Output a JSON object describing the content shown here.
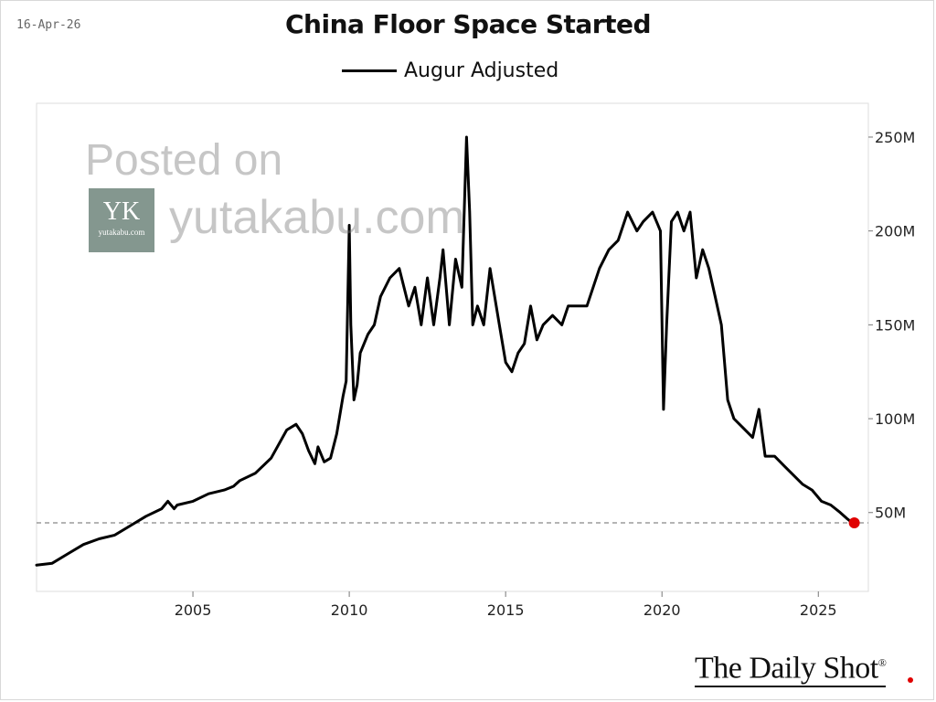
{
  "header": {
    "date": "16-Apr-26",
    "title": "China Floor Space Started",
    "legend_label": "Augur Adjusted"
  },
  "watermark": {
    "line1": "Posted on",
    "site": "yutakabu.com",
    "logo_mark": "YK",
    "logo_sub": "yutakabu.com"
  },
  "brand": {
    "name": "The Daily Shot",
    "mark": "®"
  },
  "colors": {
    "series": "#000000",
    "reference_line": "#888888",
    "end_marker": "#e00000",
    "grid_box": "#dddddd"
  },
  "chart_data": {
    "type": "line",
    "title": "China Floor Space Started",
    "xlabel": "",
    "ylabel": "",
    "x_ticks": [
      2005,
      2010,
      2015,
      2020,
      2025
    ],
    "y_ticks": [
      {
        "value": 50,
        "label": "50M"
      },
      {
        "value": 100,
        "label": "100M"
      },
      {
        "value": 150,
        "label": "150M"
      },
      {
        "value": 200,
        "label": "200M"
      },
      {
        "value": 250,
        "label": "250M"
      }
    ],
    "xlim": [
      2000.0,
      2026.6
    ],
    "ylim": [
      8,
      268
    ],
    "grid": false,
    "y_axis_side": "right",
    "legend_position": "top-center",
    "reference_line": 44.5,
    "series": [
      {
        "name": "Augur Adjusted",
        "x": [
          2000.0,
          2000.5,
          2001.0,
          2001.5,
          2002.0,
          2002.5,
          2003.0,
          2003.5,
          2004.0,
          2004.2,
          2004.4,
          2004.5,
          2005.0,
          2005.5,
          2006.0,
          2006.3,
          2006.5,
          2007.0,
          2007.5,
          2008.0,
          2008.3,
          2008.5,
          2008.7,
          2008.9,
          2009.0,
          2009.2,
          2009.4,
          2009.6,
          2009.8,
          2009.9,
          2010.0,
          2010.05,
          2010.15,
          2010.25,
          2010.35,
          2010.6,
          2010.8,
          2011.0,
          2011.3,
          2011.6,
          2011.9,
          2012.1,
          2012.3,
          2012.5,
          2012.7,
          2012.9,
          2013.0,
          2013.2,
          2013.4,
          2013.6,
          2013.75,
          2013.85,
          2013.95,
          2014.1,
          2014.3,
          2014.5,
          2014.8,
          2015.0,
          2015.2,
          2015.4,
          2015.6,
          2015.8,
          2016.0,
          2016.2,
          2016.5,
          2016.8,
          2017.0,
          2017.3,
          2017.6,
          2018.0,
          2018.3,
          2018.6,
          2018.9,
          2019.2,
          2019.4,
          2019.7,
          2019.85,
          2019.95,
          2020.05,
          2020.15,
          2020.3,
          2020.5,
          2020.7,
          2020.9,
          2021.1,
          2021.3,
          2021.5,
          2021.7,
          2021.9,
          2022.1,
          2022.3,
          2022.6,
          2022.9,
          2023.1,
          2023.3,
          2023.6,
          2023.9,
          2024.2,
          2024.5,
          2024.8,
          2025.1,
          2025.4,
          2025.7,
          2025.9,
          2026.05,
          2026.15
        ],
        "y": [
          22,
          23,
          28,
          33,
          36,
          38,
          43,
          48,
          52,
          56,
          52,
          54,
          56,
          60,
          62,
          64,
          67,
          71,
          79,
          94,
          97,
          92,
          83,
          76,
          85,
          77,
          79,
          92,
          112,
          120,
          203,
          150,
          110,
          118,
          135,
          145,
          150,
          165,
          175,
          180,
          160,
          170,
          150,
          175,
          150,
          175,
          190,
          150,
          185,
          170,
          250,
          210,
          150,
          160,
          150,
          180,
          150,
          130,
          125,
          135,
          140,
          160,
          142,
          150,
          155,
          150,
          160,
          160,
          160,
          180,
          190,
          195,
          210,
          200,
          205,
          210,
          204,
          200,
          105,
          150,
          205,
          210,
          200,
          210,
          175,
          190,
          180,
          165,
          150,
          110,
          100,
          95,
          90,
          105,
          80,
          80,
          75,
          70,
          65,
          62,
          56,
          54,
          50,
          47,
          45,
          44.5
        ],
        "end_marker": true
      }
    ]
  }
}
